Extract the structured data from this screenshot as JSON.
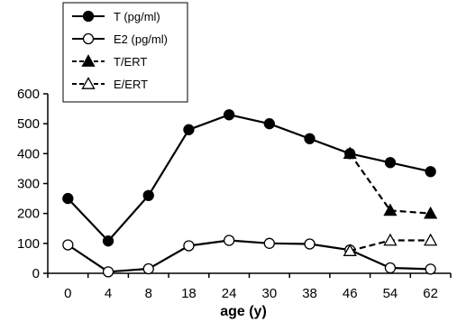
{
  "chart_data": {
    "type": "line",
    "categories": [
      "0",
      "4",
      "8",
      "18",
      "24",
      "30",
      "38",
      "46",
      "54",
      "62"
    ],
    "xlabel": "age (y)",
    "ylabel": "",
    "ylim": [
      0,
      600
    ],
    "yticks": [
      0,
      100,
      200,
      300,
      400,
      500,
      600
    ],
    "grid": false,
    "legend_position": "top-left",
    "series": [
      {
        "name": "T (pg/ml)",
        "style": "solid",
        "marker": "filled-circle",
        "color": "#000000",
        "values": [
          250,
          108,
          260,
          480,
          530,
          500,
          450,
          400,
          370,
          340
        ]
      },
      {
        "name": "E2 (pg/ml)",
        "style": "solid",
        "marker": "open-circle",
        "color": "#000000",
        "values": [
          95,
          5,
          15,
          92,
          110,
          100,
          98,
          78,
          18,
          14
        ]
      },
      {
        "name": "T/ERT",
        "style": "dashed",
        "marker": "filled-triangle",
        "color": "#000000",
        "values": [
          null,
          null,
          null,
          null,
          null,
          null,
          null,
          400,
          210,
          200
        ]
      },
      {
        "name": "E/ERT",
        "style": "dashed",
        "marker": "open-triangle",
        "color": "#000000",
        "values": [
          null,
          null,
          null,
          null,
          null,
          null,
          null,
          75,
          110,
          110
        ]
      }
    ]
  }
}
